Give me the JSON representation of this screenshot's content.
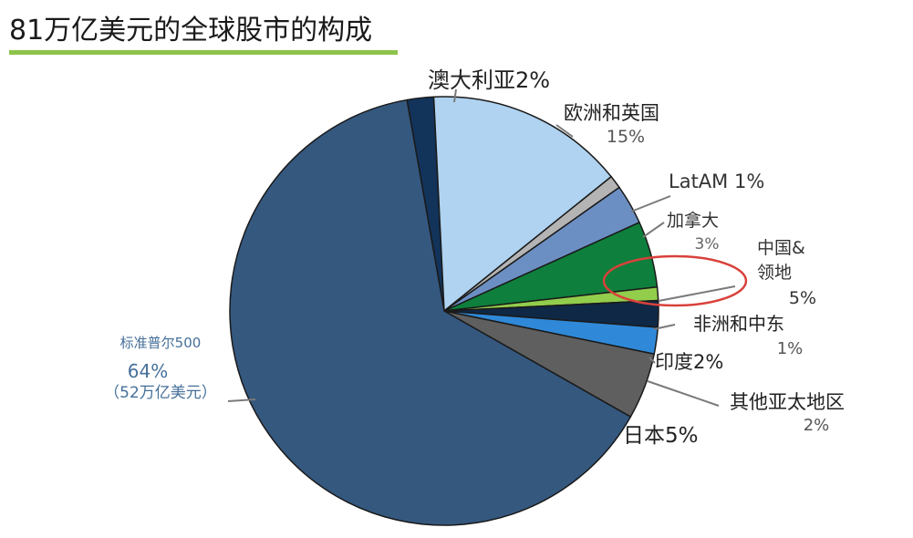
{
  "title": "81万亿美元的全球股市的构成",
  "colors": {
    "title_underline": "#8cc34a",
    "highlight_ellipse": "#d9413b"
  },
  "chart_data": {
    "type": "pie",
    "title": "81万亿美元的全球股市的构成",
    "slices": [
      {
        "name": "澳大利亚",
        "value": 2,
        "text": "澳大利亚2%",
        "color": "#12335a"
      },
      {
        "name": "欧洲和英国",
        "value": 15,
        "text": "欧洲和英国|15%",
        "color": "#afd3f0"
      },
      {
        "name": "LatAM",
        "value": 1,
        "text": "LatAM 1%",
        "color": "#b4b4b4"
      },
      {
        "name": "加拿大",
        "value": 3,
        "text": "加拿大|3%",
        "color": "#6c8fc3"
      },
      {
        "name": "中国&领地",
        "value": 5,
        "text": "中国&|领地|5%",
        "color": "#0e7f3c"
      },
      {
        "name": "非洲和中东",
        "value": 1,
        "text": "非洲和中东|1%",
        "color": "#93cd4c"
      },
      {
        "name": "印度",
        "value": 2,
        "text": "印度2%",
        "color": "#0f2846"
      },
      {
        "name": "其他亚太地区",
        "value": 2,
        "text": "其他亚太地区|2%",
        "color": "#2f89d8"
      },
      {
        "name": "日本",
        "value": 5,
        "text": "日本5%",
        "color": "#5f5f5f"
      },
      {
        "name": "标准普尔500",
        "value": 64,
        "text": "标准普尔500|64%|（52万亿美元）",
        "color": "#35587f"
      }
    ]
  }
}
